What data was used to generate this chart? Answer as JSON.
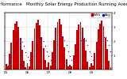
{
  "title": "Monthly Solar Energy Production Running Average",
  "subtitle": "Solar PV / Inverter Performance",
  "bar_values": [
    20,
    10,
    55,
    95,
    140,
    160,
    170,
    150,
    110,
    70,
    30,
    8,
    22,
    12,
    60,
    100,
    145,
    165,
    175,
    155,
    115,
    75,
    32,
    9,
    25,
    14,
    62,
    102,
    148,
    168,
    178,
    158,
    118,
    78,
    35,
    10,
    18,
    11,
    50,
    90,
    138,
    158,
    168,
    148,
    108,
    68,
    28,
    7,
    21,
    13,
    58,
    98,
    142,
    162,
    172,
    152,
    112,
    72,
    30,
    8
  ],
  "avg_values": [
    20,
    15,
    28,
    45,
    64,
    82,
    98,
    108,
    107,
    98,
    82,
    62,
    45,
    33,
    35,
    48,
    68,
    86,
    103,
    112,
    111,
    101,
    84,
    63,
    46,
    34,
    37,
    51,
    71,
    90,
    107,
    116,
    115,
    104,
    87,
    65,
    47,
    34,
    36,
    49,
    69,
    88,
    104,
    113,
    112,
    102,
    85,
    63,
    46,
    33,
    36,
    50,
    70,
    89,
    106,
    115,
    113,
    103,
    86,
    63
  ],
  "bar_color": "#cc0000",
  "avg_color": "#0000ee",
  "bg_color": "#ffffff",
  "grid_color": "#aaaaaa",
  "ylim": [
    0,
    200
  ],
  "ytick_labels": [
    "",
    "1",
    "2",
    "3",
    "4"
  ],
  "ytick_vals": [
    0,
    50,
    100,
    150,
    200
  ],
  "year_labels": [
    "05",
    "06",
    "07",
    "08",
    "09"
  ],
  "legend_bar_label": "kWh",
  "legend_avg_label": "Avg",
  "title_fontsize": 4.0,
  "tick_fontsize": 3.0
}
